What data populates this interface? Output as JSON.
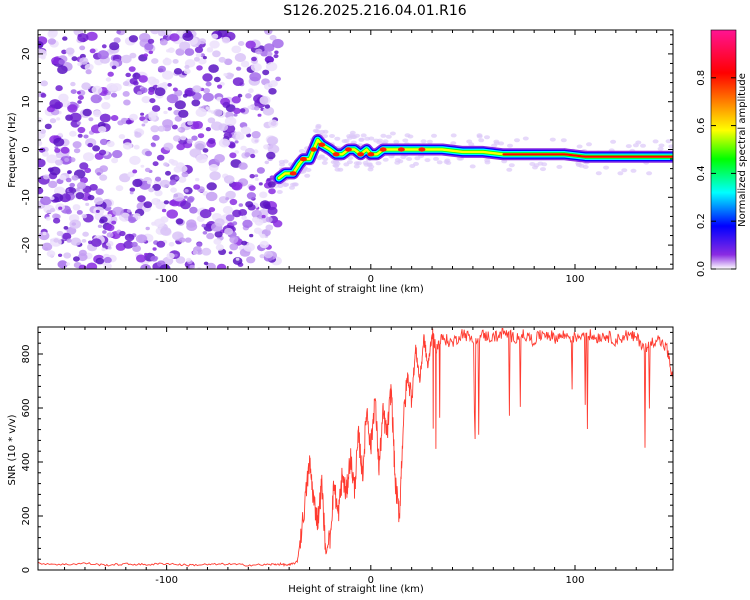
{
  "title": "S126.2025.216.04.01.R16",
  "chart_data": [
    {
      "type": "heatmap",
      "xlabel": "Height of straight line (km)",
      "ylabel": "Frequency (Hz)",
      "xlim": [
        -163,
        148
      ],
      "ylim": [
        -25,
        25
      ],
      "x_ticks": [
        -100,
        0,
        100
      ],
      "y_ticks": [
        -20,
        -10,
        0,
        10,
        20
      ],
      "colorbar": {
        "label": "Normalized spectral amplitude",
        "range": [
          0,
          1
        ],
        "ticks": [
          0.0,
          0.2,
          0.4,
          0.6,
          0.8
        ],
        "colors": [
          "#ffffff",
          "#8a2be2",
          "#0000ff",
          "#00ffff",
          "#00ff00",
          "#ffff00",
          "#ff7f00",
          "#ff0000",
          "#ff1493"
        ]
      },
      "noise_region_x": [
        -163,
        -45
      ],
      "ridge": {
        "x": [
          -45,
          -42,
          -38,
          -35,
          -33,
          -30,
          -28,
          -26,
          -24,
          -20,
          -17,
          -14,
          -11,
          -8,
          -5,
          -2,
          0,
          3,
          6,
          10,
          15,
          18,
          25,
          35,
          45,
          55,
          65,
          75,
          85,
          95,
          105,
          115,
          125,
          135,
          148
        ],
        "y": [
          -6,
          -5,
          -5,
          -3,
          -2,
          -2,
          0,
          2,
          1,
          0,
          -1,
          -1,
          0,
          0,
          -1,
          0,
          -1,
          -1,
          0,
          0,
          0,
          0,
          0,
          0,
          -0.5,
          -0.5,
          -1,
          -1,
          -1,
          -1,
          -1.5,
          -1.5,
          -1.5,
          -1.5,
          -1.5
        ]
      }
    },
    {
      "type": "line",
      "xlabel": "Height of straight line (km)",
      "ylabel": "SNR (10 * v/v)",
      "xlim": [
        -163,
        148
      ],
      "ylim": [
        0,
        900
      ],
      "x_ticks": [
        -100,
        0,
        100
      ],
      "y_ticks": [
        0,
        200,
        400,
        600,
        800
      ],
      "color": "#ff3b30",
      "series": [
        {
          "x": [
            -163,
            -150,
            -140,
            -130,
            -120,
            -110,
            -100,
            -90,
            -80,
            -70,
            -60,
            -50,
            -45,
            -40,
            -36,
            -33,
            -30,
            -28,
            -26,
            -24,
            -22,
            -20,
            -18,
            -16,
            -14,
            -12,
            -10,
            -8,
            -6,
            -4,
            -2,
            0,
            2,
            4,
            6,
            8,
            10,
            12,
            14,
            16,
            18,
            20,
            22,
            24,
            26,
            28,
            30,
            32,
            35,
            40,
            45,
            50,
            55,
            60,
            65,
            70,
            75,
            80,
            85,
            90,
            95,
            100,
            105,
            110,
            115,
            120,
            125,
            130,
            135,
            140,
            145,
            148
          ],
          "y": [
            25,
            20,
            25,
            18,
            22,
            20,
            24,
            18,
            20,
            22,
            18,
            20,
            22,
            18,
            30,
            200,
            400,
            260,
            180,
            320,
            60,
            120,
            320,
            200,
            350,
            280,
            420,
            300,
            500,
            350,
            600,
            450,
            640,
            380,
            580,
            500,
            680,
            320,
            200,
            560,
            720,
            640,
            820,
            700,
            860,
            750,
            880,
            820,
            860,
            840,
            880,
            850,
            870,
            860,
            880,
            860,
            870,
            850,
            880,
            860,
            870,
            860,
            880,
            860,
            870,
            850,
            870,
            860,
            820,
            860,
            820,
            700
          ]
        }
      ]
    }
  ]
}
